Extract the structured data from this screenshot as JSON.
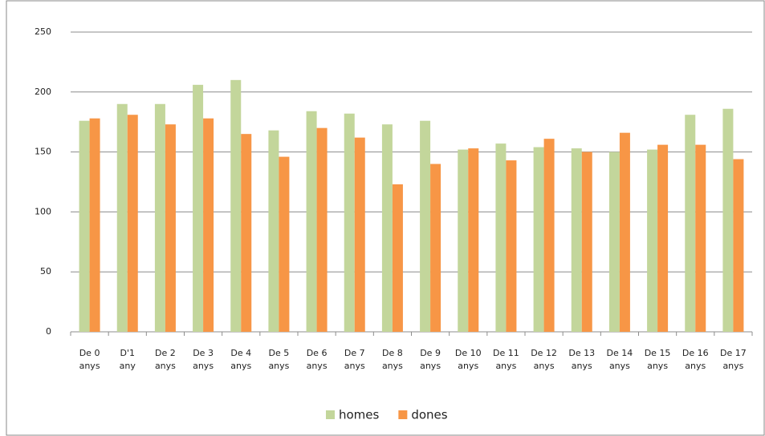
{
  "chart_data": {
    "type": "bar",
    "categories": [
      "De 0 anys",
      "D'1 any",
      "De 2 anys",
      "De 3 anys",
      "De 4 anys",
      "De 5 anys",
      "De 6 anys",
      "De 7 anys",
      "De 8 anys",
      "De 9 anys",
      "De 10 anys",
      "De 11 anys",
      "De 12 anys",
      "De 13 anys",
      "De 14 anys",
      "De 15 anys",
      "De 16 anys",
      "De 17 anys"
    ],
    "series": [
      {
        "name": "homes",
        "color": "#c3d69b",
        "values": [
          176,
          190,
          190,
          206,
          210,
          168,
          184,
          182,
          173,
          176,
          152,
          157,
          154,
          153,
          150,
          152,
          181,
          186
        ]
      },
      {
        "name": "dones",
        "color": "#f79646",
        "values": [
          178,
          181,
          173,
          178,
          165,
          146,
          170,
          162,
          123,
          140,
          153,
          143,
          161,
          150,
          166,
          156,
          156,
          144
        ]
      }
    ],
    "ylim": [
      0,
      250
    ],
    "yticks": [
      0,
      50,
      100,
      150,
      200,
      250
    ],
    "grid": true,
    "legend": "bottom"
  }
}
